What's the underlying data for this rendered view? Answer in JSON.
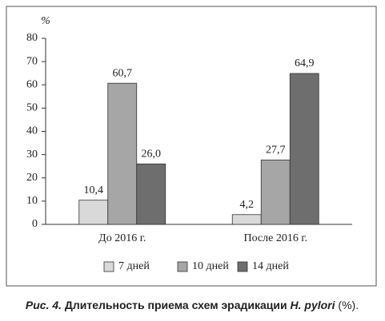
{
  "chart_data": {
    "type": "bar",
    "y_label": "%",
    "categories": [
      "До 2016 г.",
      "После 2016 г."
    ],
    "series": [
      {
        "name": "7 дней",
        "color": "#d9d9d9",
        "values": [
          10.4,
          4.2
        ],
        "value_labels": [
          "10,4",
          "4,2"
        ]
      },
      {
        "name": "10 дней",
        "color": "#a6a6a6",
        "values": [
          60.7,
          27.7
        ],
        "value_labels": [
          "60,7",
          "27,7"
        ]
      },
      {
        "name": "14 дней",
        "color": "#6e6e6e",
        "values": [
          26.0,
          64.9
        ],
        "value_labels": [
          "26,0",
          "64,9"
        ]
      }
    ],
    "ylim": [
      0,
      80
    ],
    "yticks": [
      0,
      10,
      20,
      30,
      40,
      50,
      60,
      70,
      80
    ],
    "grid": false,
    "legend": "bottom",
    "caption": [
      "Рис. 4.",
      "Длительность приема схем эрадикации",
      "H. pylori",
      "(%)."
    ]
  }
}
